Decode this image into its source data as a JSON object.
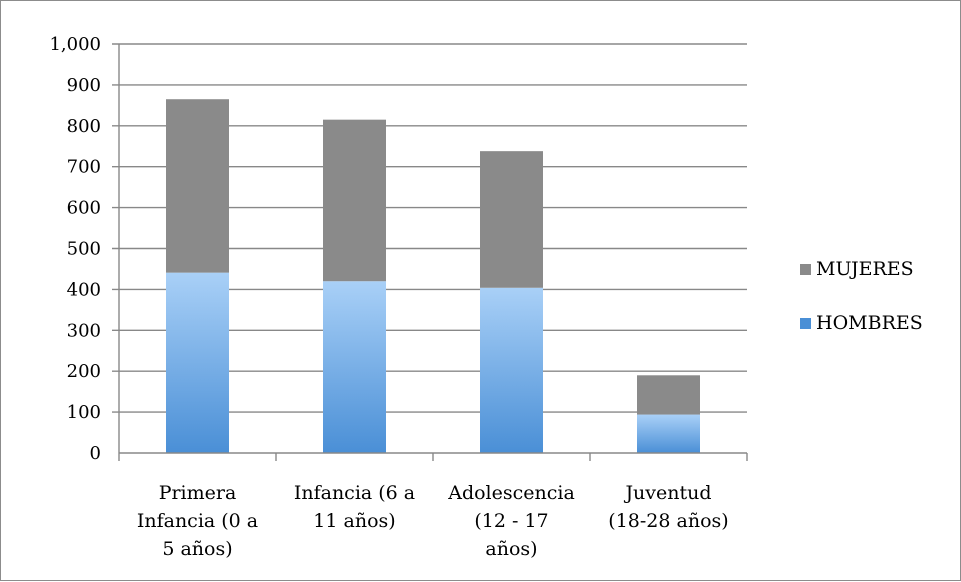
{
  "colors": {
    "mujeres": "#8a8a8a",
    "hombres_top": "#a9d0f7",
    "hombres_bottom": "#4a8fd6",
    "grid": "#888888",
    "axis": "#888888"
  },
  "chart_data": {
    "type": "bar",
    "stacked": true,
    "categories": [
      [
        "Primera",
        "Infancia (0 a",
        "5 años)"
      ],
      [
        "Infancia (6 a",
        "11 años)"
      ],
      [
        "Adolescencia",
        "(12 - 17",
        "años)"
      ],
      [
        "Juventud",
        "(18-28 años)"
      ]
    ],
    "series": [
      {
        "name": "HOMBRES",
        "values": [
          441,
          420,
          404,
          94
        ]
      },
      {
        "name": "MUJERES",
        "values": [
          424,
          395,
          334,
          96
        ]
      }
    ],
    "ylim": [
      0,
      1000
    ],
    "yticks": [
      0,
      100,
      200,
      300,
      400,
      500,
      600,
      700,
      800,
      900,
      1000
    ],
    "ytick_labels": [
      "0",
      "100",
      "200",
      "300",
      "400",
      "500",
      "600",
      "700",
      "800",
      "900",
      "1,000"
    ],
    "grid": true,
    "legend_position": "right",
    "legend": [
      "MUJERES",
      "HOMBRES"
    ]
  }
}
